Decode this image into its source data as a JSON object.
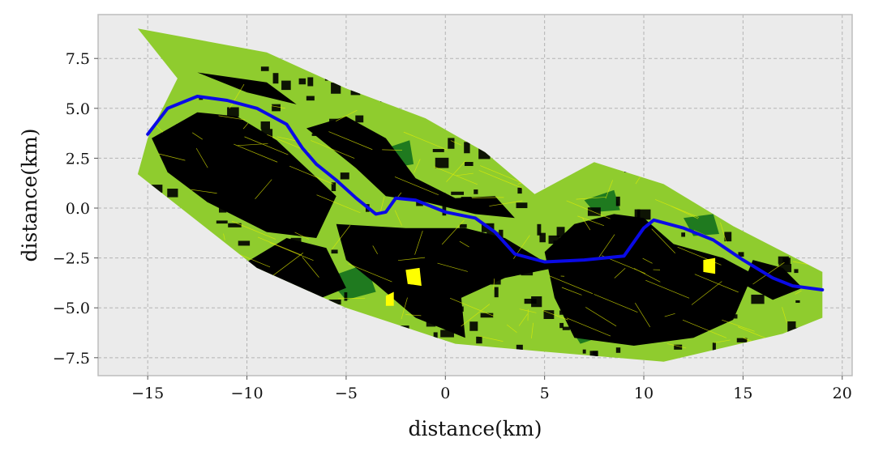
{
  "chart_data": {
    "type": "map",
    "xlabel": "distance(km)",
    "ylabel": "distance(km)",
    "xlim": [
      -17.5,
      20.5
    ],
    "ylim": [
      -8.4,
      9.7
    ],
    "xticks": [
      -15,
      -10,
      -5,
      0,
      5,
      10,
      15,
      20
    ],
    "xtick_labels": [
      "−15",
      "−10",
      "−5",
      "0",
      "5",
      "10",
      "15",
      "20"
    ],
    "yticks": [
      -7.5,
      -5.0,
      -2.5,
      0.0,
      2.5,
      5.0,
      7.5
    ],
    "ytick_labels": [
      "−7.5",
      "−5.0",
      "−2.5",
      "0.0",
      "2.5",
      "5.0",
      "7.5"
    ],
    "grid": true,
    "colors": {
      "background": "#ebebeb",
      "vegetation": "#8fcc2e",
      "urban": "#000000",
      "river": "#0a0ae6",
      "roads": "#e6f000",
      "forest": "#1f7a1f"
    },
    "region_outline": [
      [
        -15.5,
        9.0
      ],
      [
        -9.0,
        7.8
      ],
      [
        -5.0,
        6.0
      ],
      [
        -1.0,
        4.5
      ],
      [
        2.0,
        2.8
      ],
      [
        4.5,
        0.7
      ],
      [
        7.5,
        2.3
      ],
      [
        11.0,
        1.2
      ],
      [
        14.5,
        -0.9
      ],
      [
        19.0,
        -3.2
      ],
      [
        19.0,
        -5.5
      ],
      [
        17.0,
        -6.3
      ],
      [
        11.0,
        -7.7
      ],
      [
        5.0,
        -7.2
      ],
      [
        0.5,
        -6.8
      ],
      [
        -5.0,
        -5.0
      ],
      [
        -9.5,
        -3.0
      ],
      [
        -15.5,
        1.7
      ],
      [
        -15.0,
        3.5
      ],
      [
        -13.5,
        6.5
      ]
    ],
    "river_path": [
      [
        -15.0,
        3.7
      ],
      [
        -14.0,
        5.0
      ],
      [
        -12.5,
        5.6
      ],
      [
        -11.0,
        5.4
      ],
      [
        -9.5,
        5.0
      ],
      [
        -8.0,
        4.2
      ],
      [
        -7.2,
        3.0
      ],
      [
        -6.5,
        2.2
      ],
      [
        -5.5,
        1.4
      ],
      [
        -4.5,
        0.5
      ],
      [
        -3.5,
        -0.3
      ],
      [
        -3.0,
        -0.2
      ],
      [
        -2.5,
        0.5
      ],
      [
        -1.5,
        0.4
      ],
      [
        0.0,
        -0.2
      ],
      [
        1.5,
        -0.5
      ],
      [
        2.5,
        -1.2
      ],
      [
        3.5,
        -2.3
      ],
      [
        5.0,
        -2.7
      ],
      [
        7.0,
        -2.6
      ],
      [
        9.0,
        -2.4
      ],
      [
        10.0,
        -1.0
      ],
      [
        10.5,
        -0.6
      ],
      [
        12.0,
        -1.0
      ],
      [
        13.5,
        -1.6
      ],
      [
        15.0,
        -2.6
      ],
      [
        16.5,
        -3.5
      ],
      [
        17.5,
        -3.9
      ],
      [
        19.0,
        -4.1
      ]
    ],
    "urban_areas": [
      [
        [
          -14.8,
          3.5
        ],
        [
          -12.5,
          4.8
        ],
        [
          -10.5,
          4.6
        ],
        [
          -8.5,
          3.4
        ],
        [
          -7.0,
          2.0
        ],
        [
          -5.5,
          0.6
        ],
        [
          -6.5,
          -1.5
        ],
        [
          -9.0,
          -1.2
        ],
        [
          -12.0,
          0.3
        ],
        [
          -14.0,
          1.8
        ]
      ],
      [
        [
          -12.5,
          6.8
        ],
        [
          -9.0,
          6.3
        ],
        [
          -7.5,
          5.2
        ],
        [
          -10.0,
          5.8
        ]
      ],
      [
        [
          -7.0,
          4.0
        ],
        [
          -5.0,
          4.6
        ],
        [
          -3.0,
          3.5
        ],
        [
          -1.5,
          1.5
        ],
        [
          0.5,
          0.5
        ],
        [
          2.5,
          0.6
        ],
        [
          3.5,
          -0.5
        ],
        [
          1.5,
          -0.3
        ],
        [
          -1.0,
          0.3
        ],
        [
          -3.0,
          0.6
        ],
        [
          -4.5,
          2.0
        ]
      ],
      [
        [
          -5.5,
          -0.8
        ],
        [
          -2.0,
          -1.0
        ],
        [
          1.0,
          -1.0
        ],
        [
          3.0,
          -1.5
        ],
        [
          5.5,
          -3.0
        ],
        [
          3.0,
          -3.5
        ],
        [
          0.8,
          -4.5
        ],
        [
          1.0,
          -6.5
        ],
        [
          -1.5,
          -5.5
        ],
        [
          -3.5,
          -3.8
        ],
        [
          -5.0,
          -2.6
        ]
      ],
      [
        [
          5.0,
          -2.2
        ],
        [
          6.5,
          -0.8
        ],
        [
          8.5,
          -0.3
        ],
        [
          10.0,
          -0.5
        ],
        [
          11.5,
          -1.8
        ],
        [
          14.0,
          -2.5
        ],
        [
          15.5,
          -3.3
        ],
        [
          14.5,
          -5.6
        ],
        [
          12.5,
          -6.5
        ],
        [
          9.5,
          -6.9
        ],
        [
          6.5,
          -6.5
        ],
        [
          5.5,
          -4.5
        ]
      ],
      [
        [
          -10.5,
          -3.0
        ],
        [
          -8.0,
          -1.5
        ],
        [
          -6.0,
          -2.0
        ],
        [
          -5.0,
          -4.0
        ],
        [
          -7.0,
          -4.8
        ],
        [
          -9.0,
          -4.0
        ]
      ],
      [
        [
          15.5,
          -2.6
        ],
        [
          17.0,
          -3.0
        ],
        [
          18.0,
          -4.0
        ],
        [
          16.5,
          -4.6
        ],
        [
          15.0,
          -3.8
        ]
      ]
    ],
    "forest_areas": [
      [
        [
          -6.0,
          -3.5
        ],
        [
          -4.0,
          -2.8
        ],
        [
          -3.5,
          -4.2
        ],
        [
          -5.0,
          -4.6
        ]
      ],
      [
        [
          7.0,
          0.4
        ],
        [
          8.5,
          0.9
        ],
        [
          8.8,
          -0.1
        ],
        [
          7.5,
          -0.2
        ]
      ],
      [
        [
          12.0,
          -0.5
        ],
        [
          13.5,
          -0.3
        ],
        [
          13.8,
          -1.3
        ],
        [
          12.5,
          -1.4
        ]
      ],
      [
        [
          6.0,
          -5.5
        ],
        [
          7.5,
          -5.0
        ],
        [
          8.0,
          -6.4
        ],
        [
          6.8,
          -6.8
        ]
      ],
      [
        [
          -3.0,
          3.0
        ],
        [
          -1.8,
          3.4
        ],
        [
          -1.6,
          2.2
        ],
        [
          -2.8,
          2.0
        ]
      ]
    ],
    "yellow_patches": [
      [
        [
          -2.0,
          -3.1
        ],
        [
          -1.3,
          -3.0
        ],
        [
          -1.2,
          -3.9
        ],
        [
          -1.9,
          -3.8
        ]
      ],
      [
        [
          13.0,
          -2.6
        ],
        [
          13.6,
          -2.5
        ],
        [
          13.6,
          -3.3
        ],
        [
          13.0,
          -3.2
        ]
      ],
      [
        [
          -3.0,
          -4.4
        ],
        [
          -2.6,
          -4.2
        ],
        [
          -2.6,
          -4.9
        ],
        [
          -3.0,
          -4.9
        ]
      ]
    ]
  }
}
